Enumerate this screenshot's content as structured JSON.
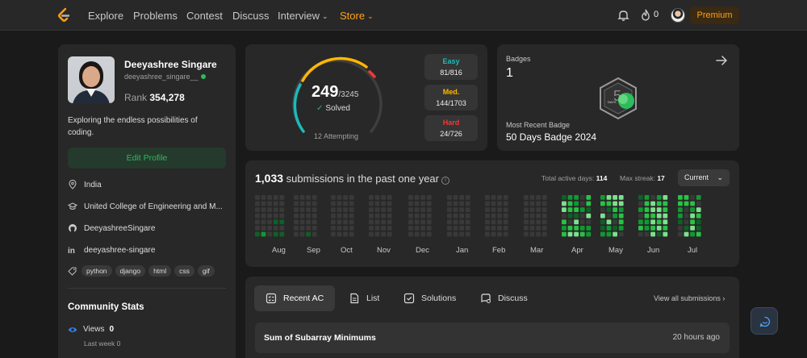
{
  "nav": {
    "items": [
      "Explore",
      "Problems",
      "Contest",
      "Discuss",
      "Interview",
      "Store"
    ],
    "streak": "0",
    "premium": "Premium"
  },
  "profile": {
    "name": "Deeyashree Singare",
    "handle": "deeyashree_singare__",
    "rank_label": "Rank",
    "rank_value": "354,278",
    "bio": "Exploring the endless possibilities of coding.",
    "edit_label": "Edit Profile",
    "location": "India",
    "school": "United College of Engineering and M...",
    "github": "DeeyashreeSingare",
    "linkedin": "deeyashree-singare",
    "skills": [
      "python",
      "django",
      "html",
      "css",
      "gif"
    ]
  },
  "community": {
    "title": "Community Stats",
    "views_label": "Views",
    "views_value": "0",
    "last_week_label": "Last week",
    "last_week_value": "0"
  },
  "solved": {
    "count": "249",
    "total": "/3245",
    "label": "Solved",
    "attempting": "12 Attempting",
    "easy_label": "Easy",
    "easy_value": "81/816",
    "medium_label": "Med.",
    "medium_value": "144/1703",
    "hard_label": "Hard",
    "hard_value": "24/726",
    "colors": {
      "easy": "#1cbaba",
      "medium": "#ffb700",
      "hard": "#f63737"
    }
  },
  "badges": {
    "label": "Badges",
    "count": "1",
    "recent_label": "Most Recent Badge",
    "recent_name": "50 Days Badge 2024",
    "badge_text": "DAYS"
  },
  "activity": {
    "count": "1,033",
    "count_suffix": " submissions in the past one year",
    "active_label": "Total active days:",
    "active_value": "114",
    "streak_label": "Max streak:",
    "streak_value": "17",
    "range": "Current",
    "months": [
      "Aug",
      "Sep",
      "Oct",
      "Nov",
      "Dec",
      "Jan",
      "Feb",
      "Mar",
      "Apr",
      "May",
      "Jun",
      "Jul"
    ]
  },
  "recent": {
    "tabs": [
      "Recent AC",
      "List",
      "Solutions",
      "Discuss"
    ],
    "view_all": "View all submissions",
    "items": [
      {
        "title": "Sum of Subarray Minimums",
        "time": "20 hours ago"
      }
    ]
  }
}
